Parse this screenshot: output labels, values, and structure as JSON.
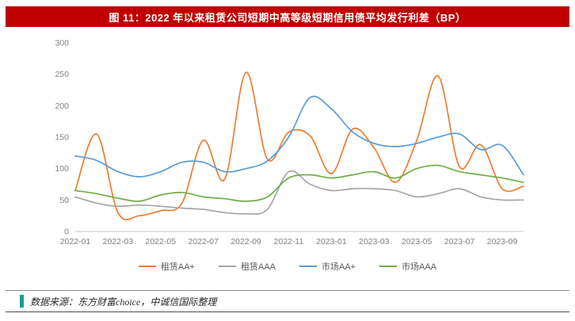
{
  "header": {
    "title": "图 11：2022 年以来租赁公司短期中高等级短期信用债平均发行利差（BP）",
    "background_color": "#C00000"
  },
  "footer": {
    "source": "数据来源：东方财富choice，中诚信国际整理",
    "accent_color": "#1A9C8C"
  },
  "chart_data": {
    "type": "line",
    "title": "图 11：2022 年以来租赁公司短期中高等级短期信用债平均发行利差（BP）",
    "x": [
      "2022-01",
      "2022-02",
      "2022-03",
      "2022-04",
      "2022-05",
      "2022-06",
      "2022-07",
      "2022-08",
      "2022-09",
      "2022-10",
      "2022-11",
      "2022-12",
      "2023-01",
      "2023-02",
      "2023-03",
      "2023-04",
      "2023-05",
      "2023-06",
      "2023-07",
      "2023-08",
      "2023-09",
      "2023-10"
    ],
    "x_tick_labels": [
      "2022-01",
      "2022-03",
      "2022-05",
      "2022-07",
      "2022-09",
      "2022-11",
      "2023-01",
      "2023-03",
      "2023-05",
      "2023-07",
      "2023-09"
    ],
    "ylabel": "",
    "xlabel": "",
    "ylim": [
      0,
      300
    ],
    "y_ticks": [
      0,
      50,
      100,
      150,
      200,
      250,
      300
    ],
    "grid": false,
    "legend_position": "bottom",
    "series": [
      {
        "name": "租赁AA+",
        "color": "#ED7D31",
        "values": [
          65,
          155,
          30,
          25,
          33,
          45,
          145,
          83,
          253,
          115,
          158,
          152,
          92,
          163,
          133,
          78,
          145,
          247,
          103,
          138,
          68,
          72
        ]
      },
      {
        "name": "租赁AAA",
        "color": "#A6A6A6",
        "values": [
          55,
          45,
          40,
          42,
          40,
          37,
          35,
          30,
          28,
          35,
          95,
          75,
          65,
          68,
          68,
          65,
          55,
          60,
          68,
          55,
          50,
          50
        ]
      },
      {
        "name": "市场AA+",
        "color": "#5B9BD5",
        "values": [
          120,
          113,
          95,
          87,
          95,
          110,
          110,
          95,
          100,
          112,
          150,
          213,
          195,
          158,
          140,
          135,
          140,
          150,
          155,
          130,
          137,
          90
        ]
      },
      {
        "name": "市场AAA",
        "color": "#70AD47",
        "values": [
          65,
          60,
          53,
          48,
          58,
          62,
          55,
          52,
          48,
          55,
          85,
          90,
          85,
          90,
          95,
          85,
          100,
          105,
          95,
          90,
          85,
          78
        ]
      }
    ]
  }
}
